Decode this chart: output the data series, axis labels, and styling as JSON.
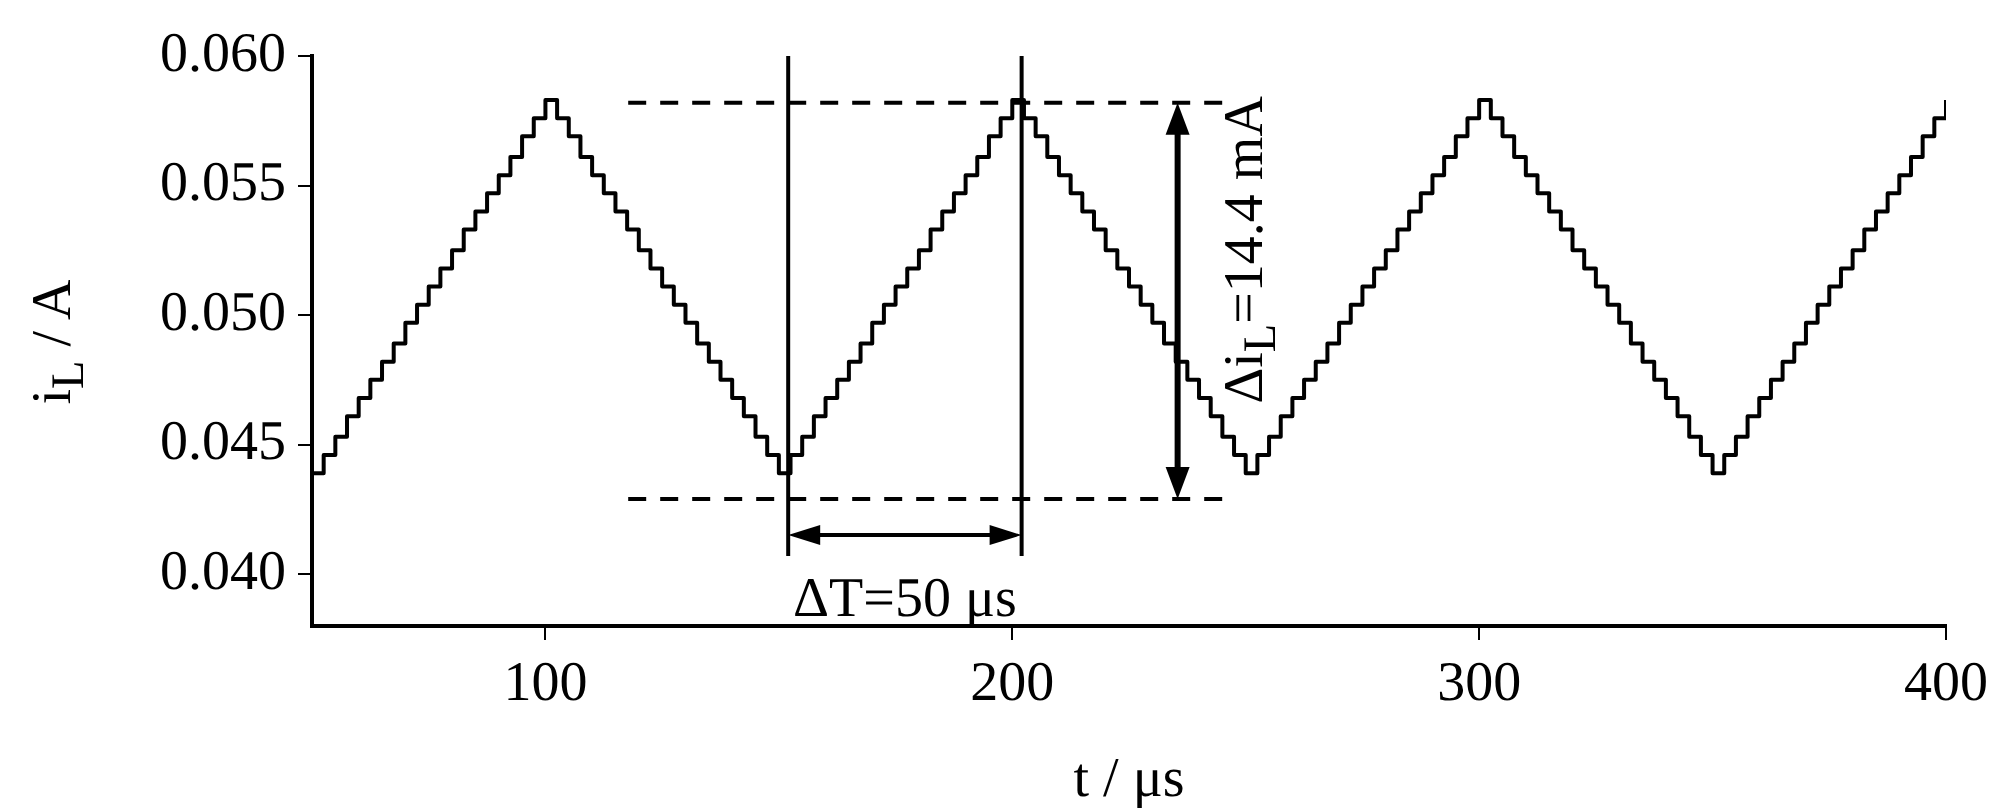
{
  "chart_data": {
    "type": "step",
    "xlabel": "t / μs",
    "ylabel": "i$_{L}$ / A",
    "x": [
      50,
      52.5,
      55,
      57.5,
      60,
      62.5,
      65,
      67.5,
      70,
      72.5,
      75,
      77.5,
      80,
      82.5,
      85,
      87.5,
      90,
      92.5,
      95,
      97.5,
      100,
      102.5,
      105,
      107.5,
      110,
      112.5,
      115,
      117.5,
      120,
      122.5,
      125,
      127.5,
      130,
      132.5,
      135,
      137.5,
      140,
      142.5,
      145,
      147.5,
      150,
      152.5,
      155,
      157.5,
      160,
      162.5,
      165,
      167.5,
      170,
      172.5,
      175,
      177.5,
      180,
      182.5,
      185,
      187.5,
      190,
      192.5,
      195,
      197.5,
      200,
      202.5,
      205,
      207.5,
      210,
      212.5,
      215,
      217.5,
      220,
      222.5,
      225,
      227.5,
      230,
      232.5,
      235,
      237.5,
      240,
      242.5,
      245,
      247.5,
      250,
      252.5,
      255,
      257.5,
      260,
      262.5,
      265,
      267.5,
      270,
      272.5,
      275,
      277.5,
      280,
      282.5,
      285,
      287.5,
      290,
      292.5,
      295,
      297.5,
      300,
      302.5,
      305,
      307.5,
      310,
      312.5,
      315,
      317.5,
      320,
      322.5,
      325,
      327.5,
      330,
      332.5,
      335,
      337.5,
      340,
      342.5,
      345,
      347.5,
      350,
      352.5,
      355,
      357.5,
      360,
      362.5,
      365,
      367.5,
      370,
      372.5,
      375,
      377.5,
      380,
      382.5,
      385,
      387.5,
      390,
      392.5,
      395,
      397.5,
      400
    ],
    "values": [
      0.0439,
      0.0446,
      0.0453,
      0.0461,
      0.0468,
      0.0475,
      0.0482,
      0.0489,
      0.0497,
      0.0504,
      0.0511,
      0.0518,
      0.0525,
      0.0533,
      0.054,
      0.0547,
      0.0554,
      0.0561,
      0.0569,
      0.0576,
      0.0583,
      0.0576,
      0.0569,
      0.0561,
      0.0554,
      0.0547,
      0.054,
      0.0533,
      0.0525,
      0.0518,
      0.0511,
      0.0504,
      0.0497,
      0.0489,
      0.0482,
      0.0475,
      0.0468,
      0.0461,
      0.0453,
      0.0446,
      0.0439,
      0.0446,
      0.0453,
      0.0461,
      0.0468,
      0.0475,
      0.0482,
      0.0489,
      0.0497,
      0.0504,
      0.0511,
      0.0518,
      0.0525,
      0.0533,
      0.054,
      0.0547,
      0.0554,
      0.0561,
      0.0569,
      0.0576,
      0.0583,
      0.0576,
      0.0569,
      0.0561,
      0.0554,
      0.0547,
      0.054,
      0.0533,
      0.0525,
      0.0518,
      0.0511,
      0.0504,
      0.0497,
      0.0489,
      0.0482,
      0.0475,
      0.0468,
      0.0461,
      0.0453,
      0.0446,
      0.0439,
      0.0446,
      0.0453,
      0.0461,
      0.0468,
      0.0475,
      0.0482,
      0.0489,
      0.0497,
      0.0504,
      0.0511,
      0.0518,
      0.0525,
      0.0533,
      0.054,
      0.0547,
      0.0554,
      0.0561,
      0.0569,
      0.0576,
      0.0583,
      0.0576,
      0.0569,
      0.0561,
      0.0554,
      0.0547,
      0.054,
      0.0533,
      0.0525,
      0.0518,
      0.0511,
      0.0504,
      0.0497,
      0.0489,
      0.0482,
      0.0475,
      0.0468,
      0.0461,
      0.0453,
      0.0446,
      0.0439,
      0.0446,
      0.0453,
      0.0461,
      0.0468,
      0.0475,
      0.0482,
      0.0489,
      0.0497,
      0.0504,
      0.0511,
      0.0518,
      0.0525,
      0.0533,
      0.054,
      0.0547,
      0.0554,
      0.0561,
      0.0569,
      0.0576,
      0.0583
    ],
    "color": "#000000",
    "xlim": [
      50,
      400
    ],
    "xticks": [
      100,
      200,
      300,
      400
    ],
    "ylim": [
      0.038,
      0.06
    ],
    "yticks": [
      {
        "value": 0.04,
        "label": "0.040"
      },
      {
        "value": 0.045,
        "label": "0.045"
      },
      {
        "value": 0.05,
        "label": "0.050"
      },
      {
        "value": 0.055,
        "label": "0.055"
      },
      {
        "value": 0.06,
        "label": "0.060"
      }
    ],
    "ref_lines": [
      {
        "axis": "x",
        "value": 152,
        "color": "#000000",
        "line_style": "solid"
      },
      {
        "axis": "x",
        "value": 202,
        "color": "#000000",
        "line_style": "solid"
      },
      {
        "axis": "y",
        "value": 0.0582,
        "color": "#000000",
        "line_style": "dashed"
      },
      {
        "axis": "y",
        "value": 0.0429,
        "color": "#000000",
        "line_style": "dashed"
      }
    ],
    "annotations": [
      "ΔT=50 μs",
      "Δi$_{L}$=14.4 mA"
    ],
    "grid": false,
    "legend": false,
    "marker": "none",
    "line_style": "solid"
  }
}
